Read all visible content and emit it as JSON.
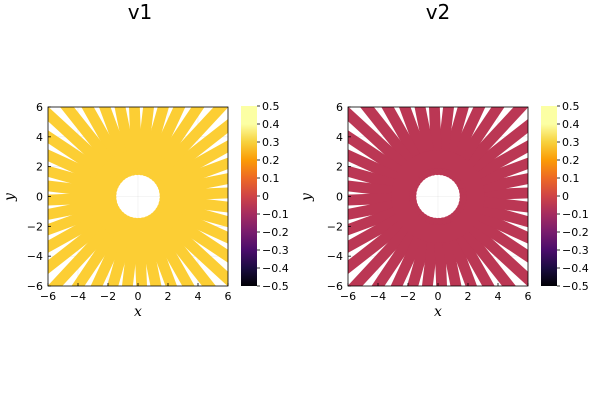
{
  "chart_data": [
    {
      "type": "scatter",
      "title": "v1",
      "xlabel": "x",
      "ylabel": "y",
      "xlim": [
        -6,
        6
      ],
      "ylim": [
        -6,
        6
      ],
      "xticks": [
        "-6",
        "-4",
        "-2",
        "0",
        "2",
        "4",
        "6"
      ],
      "yticks": [
        "-6",
        "-4",
        "-2",
        "0",
        "2",
        "4",
        "6"
      ],
      "grid": true,
      "point_value": 0.5,
      "point_color": "#fcce34",
      "shape": {
        "spoke_count": 40,
        "inner_radius": 1.8,
        "outer_radius": 6,
        "clip_to_axes": true,
        "note_inner_hole": "empty circular region of radius ~1.8 at origin"
      },
      "colorbar": {
        "colormap": "inferno",
        "min": -0.5,
        "max": 0.5,
        "ticks": [
          "0.5",
          "0.4",
          "0.3",
          "0.2",
          "0.1",
          "0",
          "−0.1",
          "−0.2",
          "−0.3",
          "−0.4",
          "−0.5"
        ]
      }
    },
    {
      "type": "scatter",
      "title": "v2",
      "xlabel": "x",
      "ylabel": "y",
      "xlim": [
        -6,
        6
      ],
      "ylim": [
        -6,
        6
      ],
      "xticks": [
        "-6",
        "-4",
        "-2",
        "0",
        "2",
        "4",
        "6"
      ],
      "yticks": [
        "-6",
        "-4",
        "-2",
        "0",
        "2",
        "4",
        "6"
      ],
      "grid": true,
      "point_value": 0.0,
      "point_color": "#bb3754",
      "shape": {
        "spoke_count": 40,
        "inner_radius": 1.8,
        "outer_radius": 6,
        "clip_to_axes": true,
        "note_inner_hole": "empty circular region of radius ~1.8 at origin"
      },
      "colorbar": {
        "colormap": "inferno",
        "min": -0.5,
        "max": 0.5,
        "ticks": [
          "0.5",
          "0.4",
          "0.3",
          "0.2",
          "0.1",
          "0",
          "−0.1",
          "−0.2",
          "−0.3",
          "−0.4",
          "−0.5"
        ]
      }
    }
  ]
}
